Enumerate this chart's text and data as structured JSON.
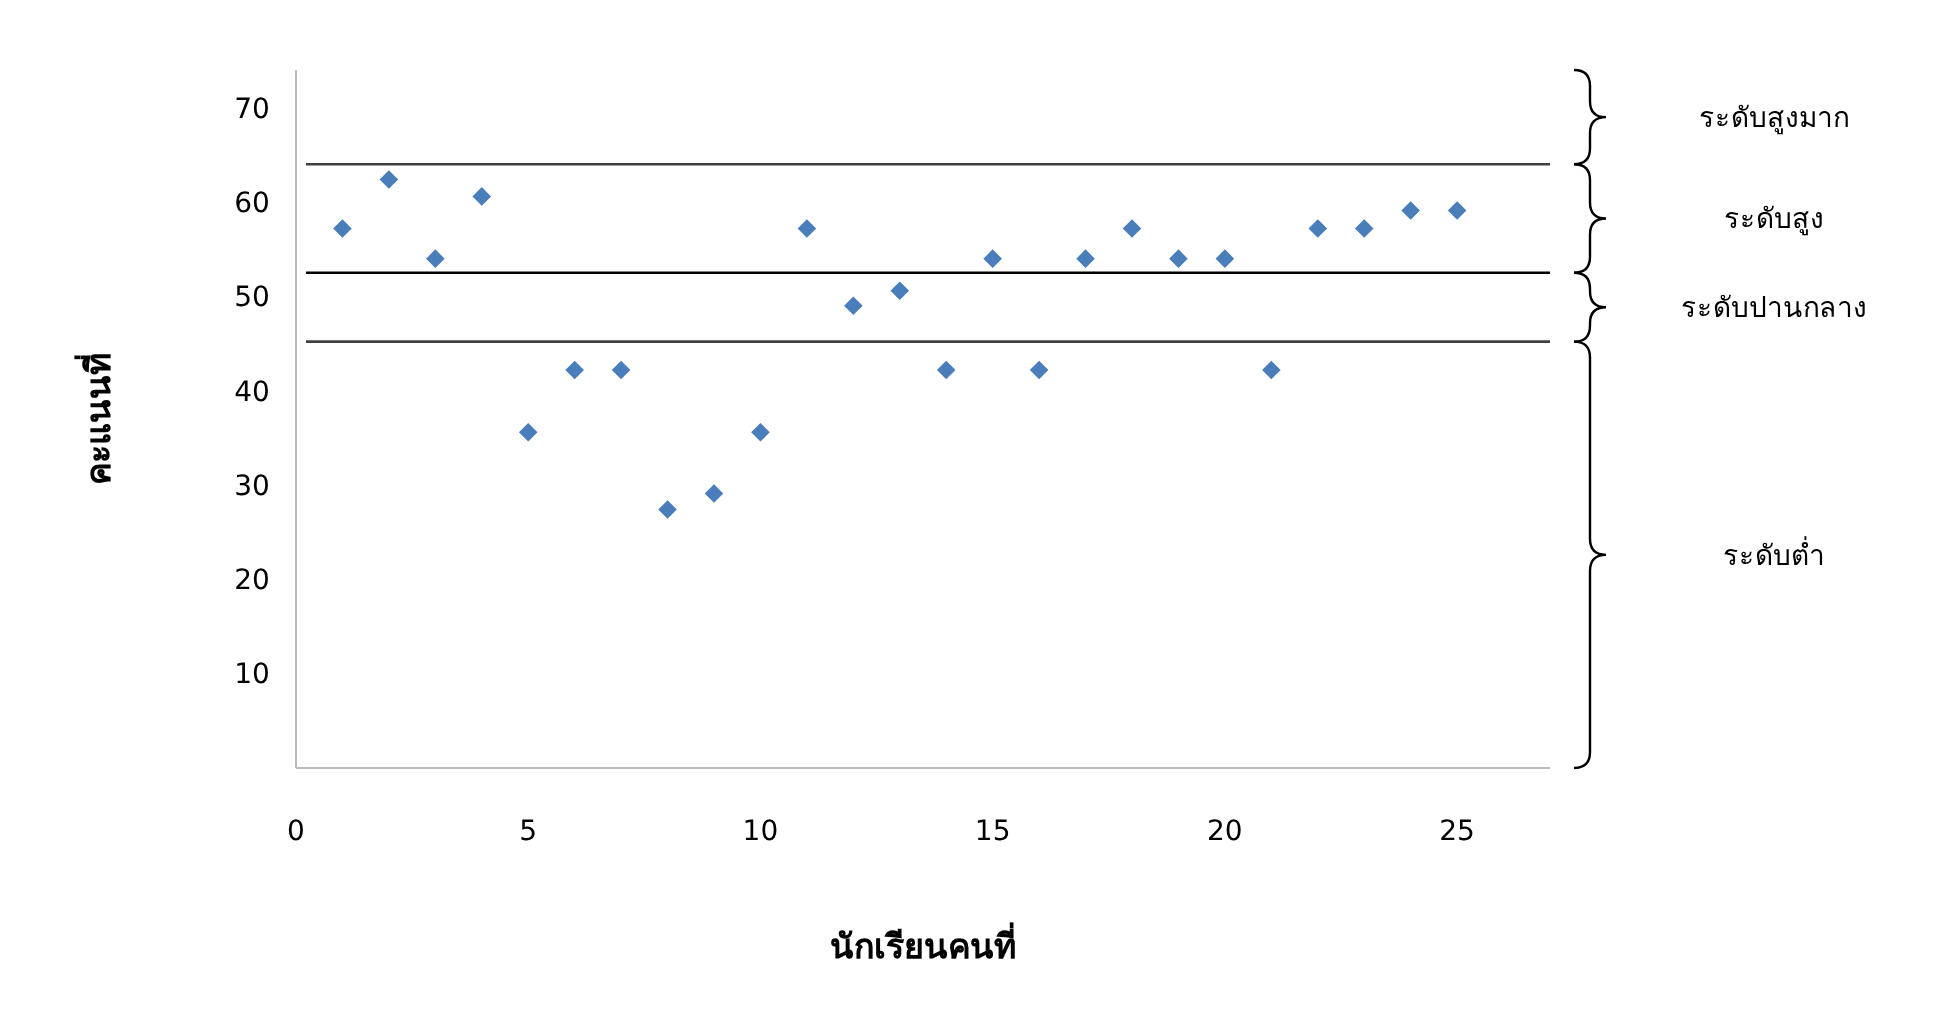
{
  "chart_data": {
    "type": "scatter",
    "xlabel": "นักเรียนคนที่",
    "ylabel": "คะแนนที่",
    "x": [
      1,
      2,
      3,
      4,
      5,
      6,
      7,
      8,
      9,
      10,
      11,
      12,
      13,
      14,
      15,
      16,
      17,
      18,
      19,
      20,
      21,
      22,
      23,
      24,
      25
    ],
    "series": [
      {
        "color": "#4a7ebb",
        "values": [
          57.2,
          62.4,
          54,
          60.6,
          35.6,
          42.2,
          42.2,
          27.4,
          29.1,
          35.6,
          57.2,
          49,
          50.6,
          42.2,
          54,
          42.2,
          54,
          57.2,
          54,
          54,
          42.2,
          57.2,
          57.2,
          59.1,
          59.1
        ]
      }
    ],
    "marker": "diamond",
    "xlim": [
      0,
      27
    ],
    "ylim": [
      0,
      74
    ],
    "xticks": [
      0,
      5,
      10,
      15,
      20,
      25
    ],
    "yticks": [
      10,
      20,
      30,
      40,
      50,
      60,
      70
    ],
    "grid": false,
    "legend": false,
    "ref_lines": [
      {
        "axis": "y",
        "value": 64,
        "color": "#404040"
      },
      {
        "axis": "y",
        "value": 52.5,
        "color": "#000000"
      },
      {
        "axis": "y",
        "value": 45.2,
        "color": "#404040"
      }
    ],
    "annotations": [
      "ระดับสูงมาก",
      "ระดับสูง",
      "ระดับปานกลาง",
      "ระดับต่ำ"
    ]
  }
}
